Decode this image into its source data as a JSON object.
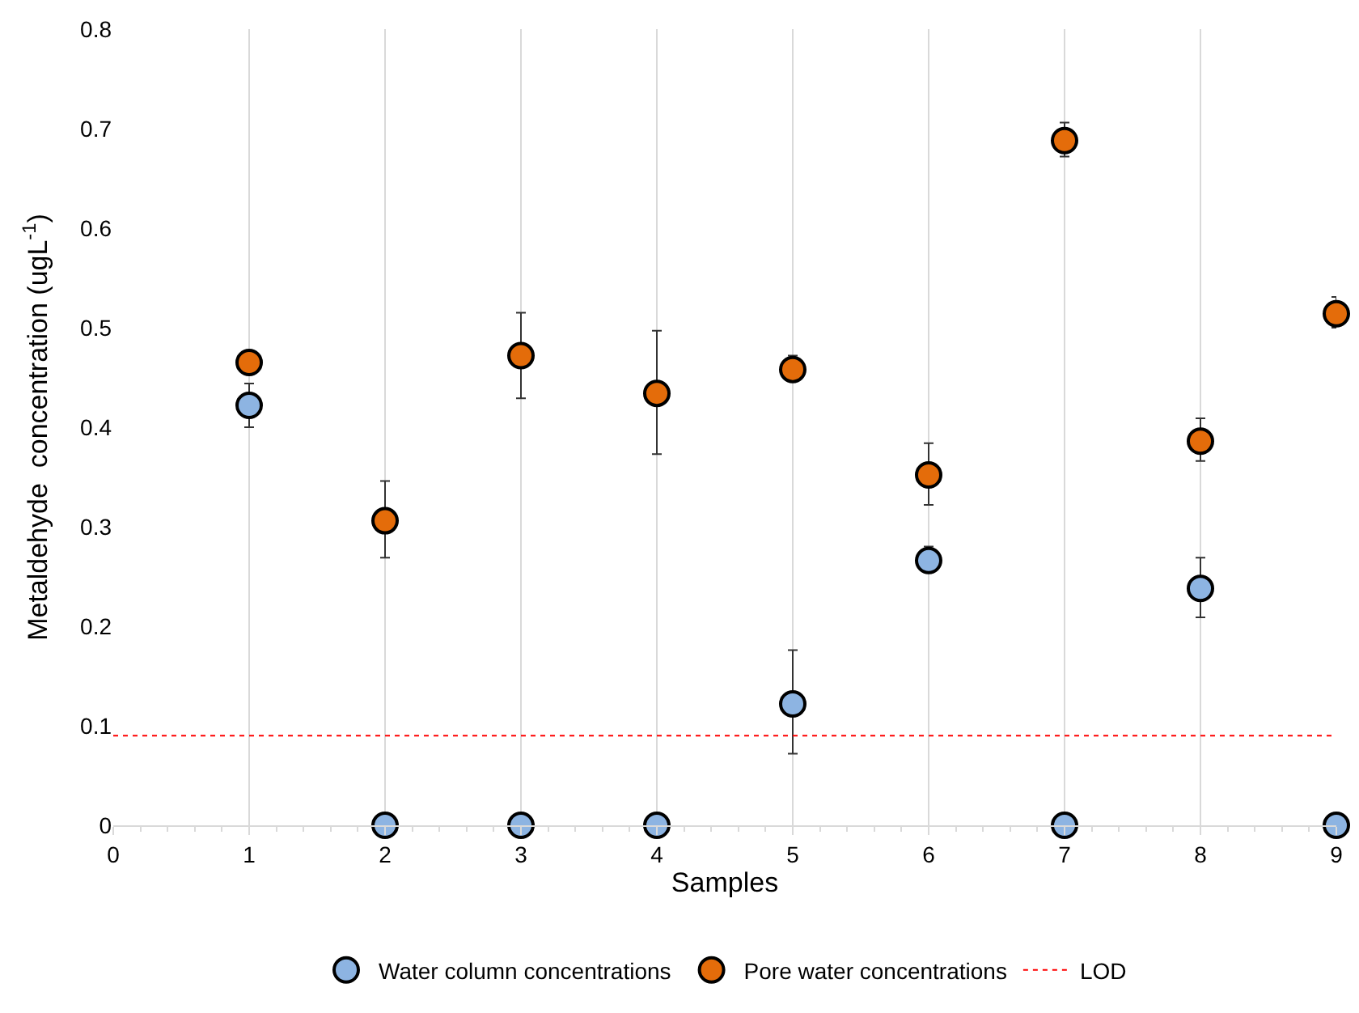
{
  "chart_data": {
    "type": "scatter",
    "xlabel": "Samples",
    "ylabel": "Metaldehyde  concentration (ugL$^{-1}$)",
    "x": [
      1,
      2,
      3,
      4,
      5,
      6,
      7,
      8,
      9
    ],
    "series": [
      {
        "name": "Water column concentrations",
        "color": "#8db4e2",
        "values": [
          0.422,
          0,
          0,
          0,
          0.122,
          0.266,
          0,
          0.238,
          0
        ],
        "errors": [
          [
            0.4,
            0.444
          ],
          null,
          null,
          null,
          [
            0.072,
            0.176
          ],
          [
            0.254,
            0.28
          ],
          null,
          [
            0.209,
            0.269
          ],
          null
        ]
      },
      {
        "name": "Pore water concentrations",
        "color": "#e46c0a",
        "values": [
          0.465,
          0.306,
          0.472,
          0.434,
          0.458,
          0.352,
          0.688,
          0.386,
          0.514
        ],
        "errors": [
          [
            0.455,
            0.475
          ],
          [
            0.269,
            0.346
          ],
          [
            0.429,
            0.515
          ],
          [
            0.373,
            0.497
          ],
          [
            0.447,
            0.472
          ],
          [
            0.322,
            0.384
          ],
          [
            0.672,
            0.706
          ],
          [
            0.366,
            0.409
          ],
          [
            0.5,
            0.531
          ]
        ]
      }
    ],
    "ref_lines": [
      {
        "axis": "y",
        "value": 0.09,
        "label": "LOD",
        "color": "#ff0000",
        "line_style": "dotted"
      }
    ],
    "xlim": [
      0,
      9
    ],
    "xticks": [
      0,
      1,
      2,
      3,
      4,
      5,
      6,
      7,
      8,
      9
    ],
    "ylim": [
      0,
      0.8
    ],
    "yticks": [
      {
        "value": 0,
        "label": "0"
      },
      0.1,
      0.2,
      0.3,
      0.4,
      0.5,
      0.6,
      0.7,
      0.8
    ],
    "grid": "x",
    "legend": "bottom",
    "marker": "circle"
  }
}
